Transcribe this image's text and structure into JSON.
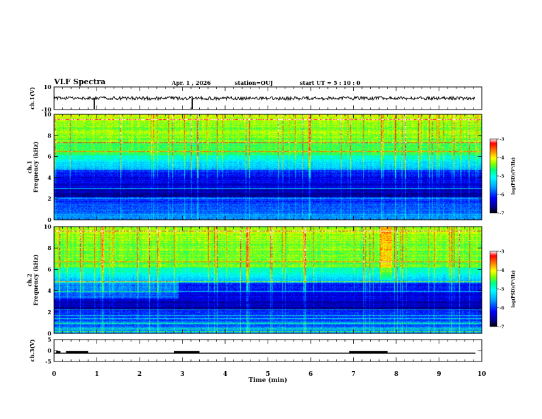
{
  "header": {
    "title": "VLF Spectra",
    "date": "Apr. 1 , 2026",
    "station": "station=OUJ",
    "start_ut": "start UT = 5 : 10 : 0"
  },
  "chart_data": [
    {
      "type": "line",
      "panel": "ch1-waveform",
      "ylabel": "ch.1(V)",
      "ylim": [
        -10,
        10
      ],
      "ytick_labels": [
        "10",
        "-10"
      ],
      "xlim": [
        0,
        10
      ],
      "baseline": 0,
      "dropouts_min": [
        0.94,
        3.23
      ]
    },
    {
      "type": "heatmap",
      "panel": "ch1-spectrogram",
      "ylabel": "ch.1\nFrequency (kHz)",
      "ylim": [
        0,
        10
      ],
      "ytick_labels": [
        "0",
        "2",
        "4",
        "6",
        "8",
        "10"
      ],
      "xlim": [
        0,
        10
      ],
      "colorbar": {
        "label": "log(PSD)(V²/Hz)",
        "range": [
          -7,
          -3
        ],
        "tick_labels": [
          "-3",
          "-4",
          "-5",
          "-6",
          "-7"
        ]
      }
    },
    {
      "type": "heatmap",
      "panel": "ch2-spectrogram",
      "ylabel": "ch.2\nFrequency (kHz)",
      "ylim": [
        0,
        10
      ],
      "ytick_labels": [
        "0",
        "2",
        "4",
        "6",
        "8",
        "10"
      ],
      "xlim": [
        0,
        10
      ],
      "colorbar": {
        "label": "log(PSD)(V²/Hz)",
        "range": [
          -7,
          -3
        ],
        "tick_labels": [
          "-3",
          "-4",
          "-5",
          "-6",
          "-7"
        ]
      }
    },
    {
      "type": "line",
      "panel": "ch3-waveform",
      "ylabel": "ch.3(V)",
      "ylim": [
        -5,
        5
      ],
      "ytick_labels": [
        "5",
        "0",
        "-5"
      ],
      "xlim": [
        0,
        10
      ],
      "xlabel": "Time (min)",
      "xtick_labels": [
        "0",
        "1",
        "2",
        "3",
        "4",
        "5",
        "6",
        "7",
        "8",
        "9",
        "10"
      ],
      "level_segments_min": [
        [
          0.05,
          0.15
        ],
        [
          0.28,
          0.8
        ],
        [
          2.8,
          3.4
        ],
        [
          6.9,
          7.8
        ]
      ]
    }
  ],
  "colors": {
    "background": "#ffffff",
    "axes": "#000000",
    "colormap": [
      "#000000",
      "#00008b",
      "#0000ff",
      "#00a0ff",
      "#00ffff",
      "#00ff80",
      "#80ff00",
      "#ffff00",
      "#ff8000",
      "#ff0000",
      "#ffffff"
    ]
  }
}
